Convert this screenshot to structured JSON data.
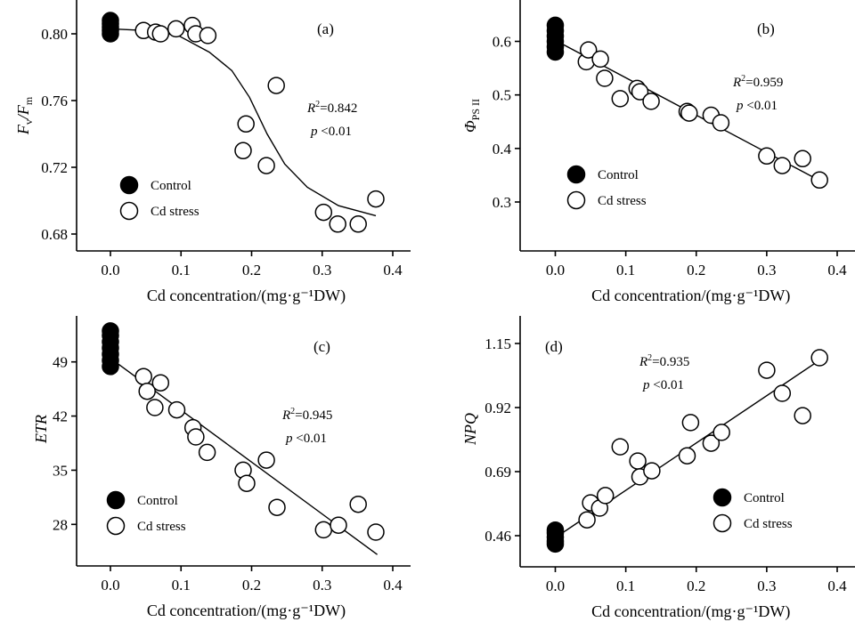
{
  "colors": {
    "ink": "#000000",
    "background": "#ffffff",
    "marker_open_fill": "#ffffff",
    "marker_filled": "#000000"
  },
  "chart_data": [
    {
      "id": "a",
      "type": "scatter",
      "panel_label": "(a)",
      "xlabel": "Cd concentration/(mg·g⁻¹DW)",
      "ylabel_main": "F",
      "ylabel_sub1": "v",
      "ylabel_mid": "/F",
      "ylabel_sub2": "m",
      "xlim": [
        -0.05,
        0.42
      ],
      "ylim": [
        0.67,
        0.817
      ],
      "xticks": [
        0.0,
        0.1,
        0.2,
        0.3,
        0.4
      ],
      "xtick_labels": [
        "0.0",
        "0.1",
        "0.2",
        "0.3",
        "0.4"
      ],
      "yticks": [
        0.68,
        0.72,
        0.76,
        0.8
      ],
      "ytick_labels": [
        "0.68",
        "0.72",
        "0.76",
        "0.80"
      ],
      "stats": {
        "r2_label": "R",
        "r2_value": "=0.842",
        "p_label": "p",
        "p_value": " <0.01"
      },
      "legend": {
        "placement": "lower-left",
        "items": [
          {
            "label": "Control",
            "marker": "filled-circle"
          },
          {
            "label": "Cd stress",
            "marker": "open-circle"
          }
        ]
      },
      "series": [
        {
          "name": "Control",
          "x": [
            0,
            0,
            0,
            0,
            0
          ],
          "y": [
            0.8,
            0.802,
            0.804,
            0.806,
            0.808
          ]
        },
        {
          "name": "Cd stress",
          "x": [
            0.047,
            0.064,
            0.071,
            0.093,
            0.116,
            0.121,
            0.138,
            0.188,
            0.192,
            0.221,
            0.235,
            0.302,
            0.322,
            0.351,
            0.376
          ],
          "y": [
            0.802,
            0.801,
            0.8,
            0.803,
            0.805,
            0.8,
            0.799,
            0.73,
            0.746,
            0.721,
            0.769,
            0.693,
            0.686,
            0.686,
            0.701
          ]
        }
      ],
      "fit": {
        "kind": "sigmoid",
        "x": [
          0.0,
          0.05,
          0.096,
          0.14,
          0.172,
          0.197,
          0.222,
          0.247,
          0.279,
          0.323,
          0.376
        ],
        "y": [
          0.803,
          0.802,
          0.799,
          0.789,
          0.778,
          0.762,
          0.74,
          0.722,
          0.708,
          0.697,
          0.691
        ]
      }
    },
    {
      "id": "b",
      "type": "scatter",
      "panel_label": "(b)",
      "xlabel": "Cd concentration/(mg·g⁻¹DW)",
      "ylabel_main": "Φ",
      "ylabel_sub1": "PS II",
      "ylabel_mid": "",
      "ylabel_sub2": "",
      "xlim": [
        -0.05,
        0.42
      ],
      "ylim": [
        0.21,
        0.67
      ],
      "xticks": [
        0.0,
        0.1,
        0.2,
        0.3,
        0.4
      ],
      "xtick_labels": [
        "0.0",
        "0.1",
        "0.2",
        "0.3",
        "0.4"
      ],
      "yticks": [
        0.3,
        0.4,
        0.5,
        0.6
      ],
      "ytick_labels": [
        "0.3",
        "0.4",
        "0.5",
        "0.6"
      ],
      "stats": {
        "r2_label": "R",
        "r2_value": "=0.959",
        "p_label": "p",
        "p_value": " <0.01"
      },
      "legend": {
        "placement": "lower-left",
        "items": [
          {
            "label": "Control",
            "marker": "filled-circle"
          },
          {
            "label": "Cd stress",
            "marker": "open-circle"
          }
        ]
      },
      "series": [
        {
          "name": "Control",
          "x": [
            0,
            0,
            0,
            0,
            0,
            0
          ],
          "y": [
            0.58,
            0.59,
            0.6,
            0.61,
            0.62,
            0.63
          ]
        },
        {
          "name": "Cd stress",
          "x": [
            0.044,
            0.047,
            0.064,
            0.07,
            0.092,
            0.116,
            0.12,
            0.136,
            0.187,
            0.19,
            0.221,
            0.235,
            0.3,
            0.322,
            0.351,
            0.375
          ],
          "y": [
            0.562,
            0.584,
            0.567,
            0.531,
            0.493,
            0.512,
            0.506,
            0.488,
            0.469,
            0.466,
            0.462,
            0.448,
            0.386,
            0.368,
            0.381,
            0.341
          ]
        }
      ],
      "fit": {
        "kind": "linear",
        "x": [
          0.01,
          0.375
        ],
        "y": [
          0.595,
          0.34
        ]
      }
    },
    {
      "id": "c",
      "type": "scatter",
      "panel_label": "(c)",
      "xlabel": "Cd concentration/(mg·g⁻¹DW)",
      "ylabel_main": "ETR",
      "ylabel_sub1": "",
      "ylabel_mid": "",
      "ylabel_sub2": "",
      "xlim": [
        -0.05,
        0.42
      ],
      "ylim": [
        22.4,
        55.6
      ],
      "xticks": [
        0.0,
        0.1,
        0.2,
        0.3,
        0.4
      ],
      "xtick_labels": [
        "0.0",
        "0.1",
        "0.2",
        "0.3",
        "0.4"
      ],
      "yticks": [
        28,
        35,
        42,
        49
      ],
      "ytick_labels": [
        "28",
        "35",
        "42",
        "49"
      ],
      "stats": {
        "r2_label": "R",
        "r2_value": "=0.945",
        "p_label": "p",
        "p_value": " <0.01"
      },
      "legend": {
        "placement": "lower-left",
        "items": [
          {
            "label": "Control",
            "marker": "filled-circle"
          },
          {
            "label": "Cd stress",
            "marker": "open-circle"
          }
        ]
      },
      "series": [
        {
          "name": "Control",
          "x": [
            0,
            0,
            0,
            0,
            0,
            0,
            0
          ],
          "y": [
            48.4,
            49.2,
            50.0,
            50.8,
            51.6,
            52.4,
            53.0
          ]
        },
        {
          "name": "Cd stress",
          "x": [
            0.047,
            0.052,
            0.063,
            0.071,
            0.094,
            0.117,
            0.121,
            0.137,
            0.188,
            0.193,
            0.221,
            0.236,
            0.302,
            0.323,
            0.351,
            0.376
          ],
          "y": [
            47.1,
            45.2,
            43.1,
            46.3,
            42.8,
            40.5,
            39.3,
            37.3,
            35.0,
            33.3,
            36.3,
            30.2,
            27.3,
            27.9,
            30.6,
            27.0
          ]
        }
      ],
      "fit": {
        "kind": "linear",
        "x": [
          0.01,
          0.378
        ],
        "y": [
          48.8,
          24.1
        ]
      }
    },
    {
      "id": "d",
      "type": "scatter",
      "panel_label": "(d)",
      "xlabel": "Cd concentration/(mg·g⁻¹DW)",
      "ylabel_main": "NPQ",
      "ylabel_sub1": "",
      "ylabel_mid": "",
      "ylabel_sub2": "",
      "xlim": [
        -0.05,
        0.42
      ],
      "ylim": [
        0.386,
        1.26
      ],
      "xticks": [
        0.0,
        0.1,
        0.2,
        0.3,
        0.4
      ],
      "xtick_labels": [
        "0.0",
        "0.1",
        "0.2",
        "0.3",
        "0.4"
      ],
      "yticks": [
        0.46,
        0.69,
        0.92,
        1.15
      ],
      "ytick_labels": [
        "0.46",
        "0.69",
        "0.92",
        "1.15"
      ],
      "stats": {
        "r2_label": "R",
        "r2_value": "=0.935",
        "p_label": "p",
        "p_value": " <0.01"
      },
      "legend": {
        "placement": "lower-right",
        "items": [
          {
            "label": "Control",
            "marker": "filled-circle"
          },
          {
            "label": "Cd stress",
            "marker": "open-circle"
          }
        ]
      },
      "series": [
        {
          "name": "Control",
          "x": [
            0,
            0,
            0,
            0,
            0
          ],
          "y": [
            0.43,
            0.44,
            0.455,
            0.47,
            0.48
          ]
        },
        {
          "name": "Cd stress",
          "x": [
            0.045,
            0.05,
            0.063,
            0.071,
            0.092,
            0.117,
            0.12,
            0.137,
            0.187,
            0.192,
            0.221,
            0.236,
            0.3,
            0.322,
            0.351,
            0.375
          ],
          "y": [
            0.517,
            0.578,
            0.559,
            0.604,
            0.779,
            0.728,
            0.671,
            0.693,
            0.747,
            0.866,
            0.792,
            0.831,
            1.054,
            0.971,
            0.891,
            1.099
          ]
        }
      ],
      "fit": {
        "kind": "linear",
        "x": [
          0.01,
          0.375
        ],
        "y": [
          0.47,
          1.09
        ]
      }
    }
  ]
}
